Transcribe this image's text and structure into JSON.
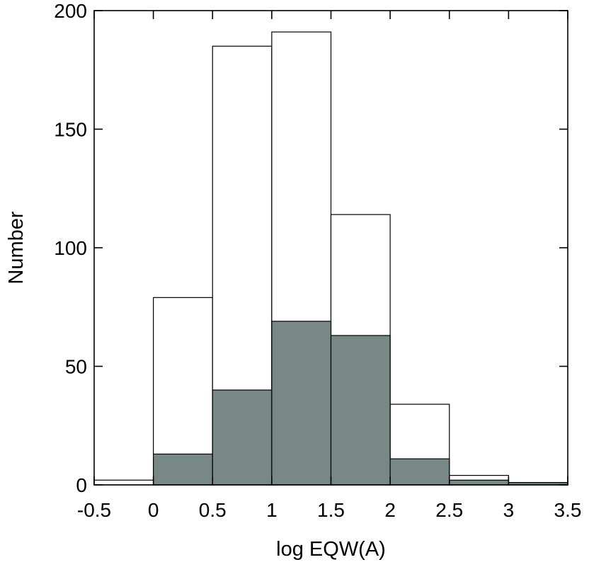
{
  "chart_data": {
    "type": "bar",
    "subtype": "histogram",
    "title": "",
    "xlabel": "log EQW(A)",
    "ylabel": "Number",
    "xlim": [
      -0.5,
      3.5
    ],
    "ylim": [
      0,
      200
    ],
    "x_ticks": [
      "-0.5",
      "0",
      "0.5",
      "1",
      "1.5",
      "2",
      "2.5",
      "3",
      "3.5"
    ],
    "y_ticks": [
      "0",
      "50",
      "100",
      "150",
      "200"
    ],
    "bin_edges": [
      -0.5,
      0,
      0.5,
      1,
      1.5,
      2,
      2.5,
      3,
      3.5
    ],
    "series": [
      {
        "style": "outline",
        "values": [
          2,
          79,
          185,
          191,
          114,
          34,
          4,
          1
        ]
      },
      {
        "style": "filled",
        "values": [
          0,
          13,
          40,
          69,
          63,
          11,
          2,
          1
        ]
      }
    ],
    "colors": {
      "outline_fill": "#ffffff",
      "filled_fill": "#788887",
      "stroke": "#000000"
    },
    "grid": false,
    "legend": "none"
  }
}
